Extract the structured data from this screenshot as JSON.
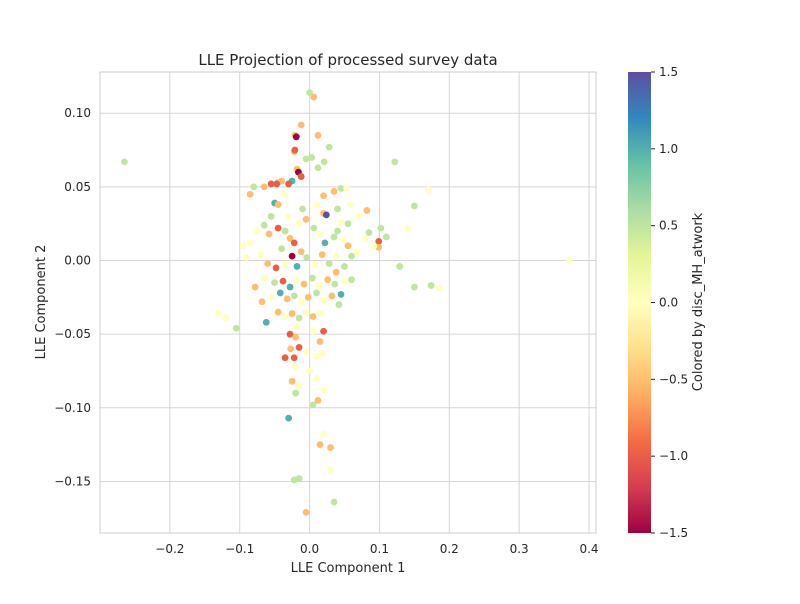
{
  "chart_data": {
    "type": "scatter",
    "title": "LLE Projection of processed survey data",
    "xlabel": "LLE Component 1",
    "ylabel": "LLE Component 2",
    "xlim": [
      -0.3,
      0.41
    ],
    "ylim": [
      -0.185,
      0.128
    ],
    "xticks": [
      -0.2,
      -0.1,
      0.0,
      0.1,
      0.2,
      0.3,
      0.4
    ],
    "xtick_labels": [
      "−0.2",
      "−0.1",
      "0.0",
      "0.1",
      "0.2",
      "0.3",
      "0.4"
    ],
    "yticks": [
      -0.15,
      -0.1,
      -0.05,
      0.0,
      0.05,
      0.1
    ],
    "ytick_labels": [
      "−0.15",
      "−0.10",
      "−0.05",
      "0.00",
      "0.05",
      "0.10"
    ],
    "grid": true,
    "colormap": "Spectral",
    "colorbar": {
      "label": "Colored by disc_MH_atwork",
      "range": [
        -1.5,
        1.5
      ],
      "ticks": [
        -1.5,
        -1.0,
        -0.5,
        0.0,
        0.5,
        1.0,
        1.5
      ],
      "tick_labels": [
        "−1.5",
        "−1.0",
        "−0.5",
        "0.0",
        "0.5",
        "1.0",
        "1.5"
      ],
      "stops": [
        "#9e0142",
        "#d53e4f",
        "#f46d43",
        "#fdae61",
        "#fee08b",
        "#ffffbf",
        "#e6f598",
        "#abdda4",
        "#66c2a5",
        "#3288bd",
        "#5e4fa2"
      ]
    },
    "points": [
      [
        -0.265,
        0.067,
        0.5
      ],
      [
        0.372,
        0.0,
        0.0
      ],
      [
        0.17,
        0.048,
        0.0
      ],
      [
        0.186,
        -0.019,
        0.0
      ],
      [
        0.174,
        -0.017,
        0.5
      ],
      [
        0.15,
        -0.018,
        0.5
      ],
      [
        0.15,
        0.037,
        0.5
      ],
      [
        0.122,
        0.067,
        0.5
      ],
      [
        0.129,
        -0.004,
        0.5
      ],
      [
        0.14,
        0.022,
        0.0
      ],
      [
        0.11,
        0.016,
        0.5
      ],
      [
        0.102,
        0.022,
        0.5
      ],
      [
        0.099,
        0.013,
        -1.0
      ],
      [
        0.099,
        0.009,
        -0.5
      ],
      [
        0.085,
        0.019,
        0.5
      ],
      [
        0.082,
        0.034,
        -0.5
      ],
      [
        0.068,
        0.006,
        0.0
      ],
      [
        0.006,
        0.111,
        -0.5
      ],
      [
        0.0,
        0.114,
        0.5
      ],
      [
        0.012,
        0.085,
        -0.5
      ],
      [
        -0.012,
        0.092,
        -0.5
      ],
      [
        -0.021,
        0.085,
        -0.5
      ],
      [
        -0.019,
        0.084,
        -1.5
      ],
      [
        -0.022,
        0.074,
        -0.5
      ],
      [
        0.028,
        0.077,
        0.5
      ],
      [
        0.003,
        0.07,
        0.5
      ],
      [
        -0.005,
        0.069,
        0.5
      ],
      [
        0.021,
        0.067,
        0.5
      ],
      [
        -0.021,
        0.075,
        -1.0
      ],
      [
        -0.018,
        0.062,
        -0.5
      ],
      [
        -0.016,
        0.06,
        -1.5
      ],
      [
        -0.012,
        0.057,
        -1.0
      ],
      [
        0.012,
        0.063,
        0.5
      ],
      [
        -0.025,
        0.054,
        1.0
      ],
      [
        -0.04,
        0.054,
        -0.5
      ],
      [
        -0.045,
        0.053,
        -0.5
      ],
      [
        -0.055,
        0.052,
        -1.0
      ],
      [
        -0.047,
        0.052,
        -1.0
      ],
      [
        -0.03,
        0.052,
        -1.0
      ],
      [
        -0.065,
        0.05,
        -0.5
      ],
      [
        -0.08,
        0.05,
        0.5
      ],
      [
        -0.085,
        0.045,
        -0.5
      ],
      [
        0.045,
        0.049,
        0.5
      ],
      [
        0.053,
        0.049,
        0.0
      ],
      [
        0.035,
        0.047,
        -0.5
      ],
      [
        0.02,
        0.044,
        -0.5
      ],
      [
        -0.05,
        0.039,
        1.0
      ],
      [
        -0.045,
        0.038,
        -0.5
      ],
      [
        -0.035,
        0.045,
        0.0
      ],
      [
        0.02,
        0.032,
        -0.5
      ],
      [
        0.024,
        0.031,
        1.5
      ],
      [
        0.04,
        0.035,
        0.5
      ],
      [
        0.058,
        0.038,
        0.0
      ],
      [
        0.07,
        0.03,
        0.0
      ],
      [
        0.08,
        0.015,
        0.0
      ],
      [
        0.092,
        0.01,
        0.0
      ],
      [
        -0.065,
        0.024,
        0.5
      ],
      [
        -0.075,
        0.02,
        0.0
      ],
      [
        -0.058,
        0.018,
        -0.5
      ],
      [
        -0.045,
        0.022,
        -1.0
      ],
      [
        -0.035,
        0.02,
        0.5
      ],
      [
        -0.028,
        0.015,
        -0.5
      ],
      [
        -0.022,
        0.012,
        -1.0
      ],
      [
        -0.015,
        0.025,
        0.0
      ],
      [
        -0.005,
        0.028,
        -0.5
      ],
      [
        0.006,
        0.022,
        0.5
      ],
      [
        0.015,
        0.018,
        0.0
      ],
      [
        0.022,
        0.012,
        1.0
      ],
      [
        0.035,
        0.016,
        0.5
      ],
      [
        0.048,
        0.014,
        0.0
      ],
      [
        0.055,
        0.01,
        -0.5
      ],
      [
        0.06,
        0.003,
        0.5
      ],
      [
        -0.085,
        0.012,
        0.0
      ],
      [
        -0.095,
        0.01,
        0.0
      ],
      [
        -0.09,
        0.002,
        0.0
      ],
      [
        -0.07,
        0.004,
        0.0
      ],
      [
        -0.06,
        -0.002,
        -0.5
      ],
      [
        -0.048,
        -0.005,
        -1.0
      ],
      [
        -0.035,
        -0.003,
        0.0
      ],
      [
        -0.025,
        0.003,
        -1.5
      ],
      [
        -0.018,
        -0.004,
        1.0
      ],
      [
        -0.012,
        0.006,
        -0.5
      ],
      [
        -0.004,
        0.002,
        0.5
      ],
      [
        0.008,
        -0.003,
        0.0
      ],
      [
        0.018,
        0.004,
        -0.5
      ],
      [
        0.028,
        -0.002,
        0.5
      ],
      [
        0.038,
        0.003,
        0.0
      ],
      [
        0.05,
        -0.004,
        0.5
      ],
      [
        -0.065,
        -0.012,
        0.0
      ],
      [
        -0.05,
        -0.015,
        0.5
      ],
      [
        -0.038,
        -0.014,
        -1.0
      ],
      [
        -0.028,
        -0.018,
        1.0
      ],
      [
        -0.018,
        -0.013,
        0.0
      ],
      [
        -0.008,
        -0.016,
        -0.5
      ],
      [
        0.004,
        -0.012,
        0.5
      ],
      [
        0.014,
        -0.017,
        0.0
      ],
      [
        0.026,
        -0.013,
        -0.5
      ],
      [
        0.036,
        -0.016,
        0.5
      ],
      [
        0.05,
        -0.014,
        0.0
      ],
      [
        0.06,
        -0.013,
        0.5
      ],
      [
        -0.055,
        -0.025,
        0.0
      ],
      [
        -0.042,
        -0.022,
        1.0
      ],
      [
        -0.032,
        -0.026,
        -0.5
      ],
      [
        -0.022,
        -0.024,
        0.5
      ],
      [
        -0.012,
        -0.028,
        0.0
      ],
      [
        -0.002,
        -0.025,
        -0.5
      ],
      [
        0.01,
        -0.022,
        0.5
      ],
      [
        0.02,
        -0.027,
        0.0
      ],
      [
        0.032,
        -0.024,
        -0.5
      ],
      [
        0.045,
        -0.023,
        1.0
      ],
      [
        0.042,
        -0.03,
        0.5
      ],
      [
        -0.068,
        -0.028,
        -0.5
      ],
      [
        -0.045,
        -0.035,
        -0.5
      ],
      [
        -0.035,
        -0.038,
        0.0
      ],
      [
        -0.025,
        -0.036,
        -0.5
      ],
      [
        -0.015,
        -0.039,
        0.5
      ],
      [
        -0.005,
        -0.035,
        0.0
      ],
      [
        0.005,
        -0.038,
        -0.5
      ],
      [
        0.015,
        -0.036,
        0.0
      ],
      [
        -0.062,
        -0.042,
        1.0
      ],
      [
        -0.028,
        -0.05,
        -1.0
      ],
      [
        -0.02,
        -0.052,
        -0.5
      ],
      [
        -0.018,
        -0.045,
        0.0
      ],
      [
        0.005,
        -0.048,
        0.0
      ],
      [
        0.02,
        -0.048,
        -1.0
      ],
      [
        0.015,
        -0.055,
        -0.5
      ],
      [
        -0.027,
        -0.06,
        -0.5
      ],
      [
        -0.022,
        -0.066,
        -1.0
      ],
      [
        -0.035,
        -0.066,
        -1.0
      ],
      [
        -0.015,
        -0.059,
        -1.0
      ],
      [
        -0.005,
        -0.062,
        0.0
      ],
      [
        0.01,
        -0.065,
        0.0
      ],
      [
        0.018,
        -0.063,
        0.0
      ],
      [
        -0.02,
        -0.072,
        0.0
      ],
      [
        0.0,
        -0.075,
        0.0
      ],
      [
        0.01,
        -0.08,
        0.0
      ],
      [
        -0.025,
        -0.082,
        -0.5
      ],
      [
        -0.015,
        -0.085,
        0.0
      ],
      [
        -0.02,
        -0.09,
        0.5
      ],
      [
        0.02,
        -0.088,
        0.0
      ],
      [
        0.005,
        -0.098,
        0.5
      ],
      [
        0.012,
        -0.095,
        -0.5
      ],
      [
        -0.03,
        -0.107,
        1.0
      ],
      [
        0.02,
        -0.118,
        0.0
      ],
      [
        0.015,
        -0.125,
        -0.5
      ],
      [
        0.03,
        -0.127,
        -0.5
      ],
      [
        0.03,
        -0.142,
        0.0
      ],
      [
        -0.022,
        -0.149,
        0.5
      ],
      [
        -0.015,
        -0.148,
        0.5
      ],
      [
        0.035,
        -0.164,
        0.5
      ],
      [
        -0.005,
        -0.171,
        -0.5
      ],
      [
        -0.13,
        -0.036,
        0.0
      ],
      [
        -0.12,
        -0.039,
        0.0
      ],
      [
        -0.105,
        -0.046,
        0.5
      ],
      [
        0.04,
        0.02,
        0.5
      ],
      [
        0.045,
        0.026,
        0.0
      ],
      [
        0.038,
        -0.008,
        -0.5
      ],
      [
        -0.03,
        0.03,
        0.0
      ],
      [
        -0.01,
        0.035,
        0.5
      ],
      [
        0.01,
        0.038,
        0.0
      ],
      [
        -0.055,
        0.03,
        0.5
      ],
      [
        0.055,
        0.025,
        0.5
      ],
      [
        -0.04,
        0.008,
        0.5
      ],
      [
        -0.078,
        -0.018,
        -0.5
      ]
    ]
  }
}
